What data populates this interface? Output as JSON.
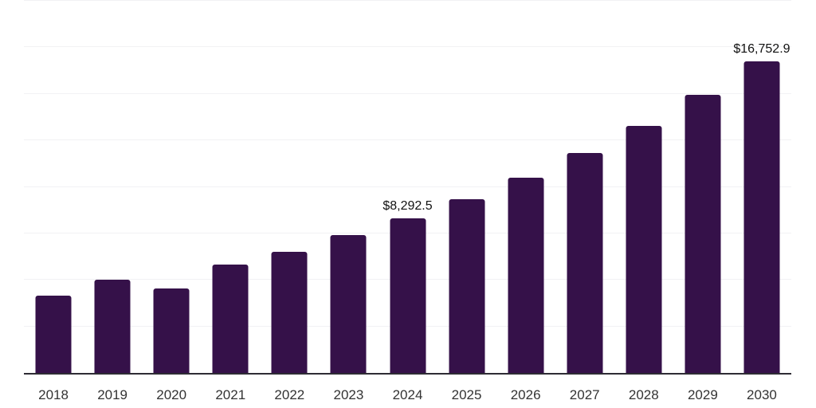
{
  "chart_data": {
    "type": "bar",
    "title": "",
    "xlabel": "",
    "ylabel": "",
    "categories": [
      "2018",
      "2019",
      "2020",
      "2021",
      "2022",
      "2023",
      "2024",
      "2025",
      "2026",
      "2027",
      "2028",
      "2029",
      "2030"
    ],
    "values": [
      4135,
      5000,
      4560,
      5820,
      6495,
      7400,
      8292.5,
      9350,
      10500,
      11810,
      13280,
      14930,
      16752.9
    ],
    "data_labels": [
      "",
      "",
      "",
      "",
      "",
      "",
      "$8,292.5",
      "",
      "",
      "",
      "",
      "",
      "$16,752.9"
    ],
    "value_prefix": "$",
    "ylim": [
      0,
      20000
    ],
    "gridline_interval": 2500,
    "grid": "horizontal",
    "y_tick_labels_shown": false,
    "legend": "none",
    "colors": {
      "bar": "#351149",
      "axis_line": "#2e2c34",
      "gridline": "#f2f2f4",
      "tick_label": "#333333",
      "data_label": "#111111",
      "background": "#ffffff"
    }
  }
}
